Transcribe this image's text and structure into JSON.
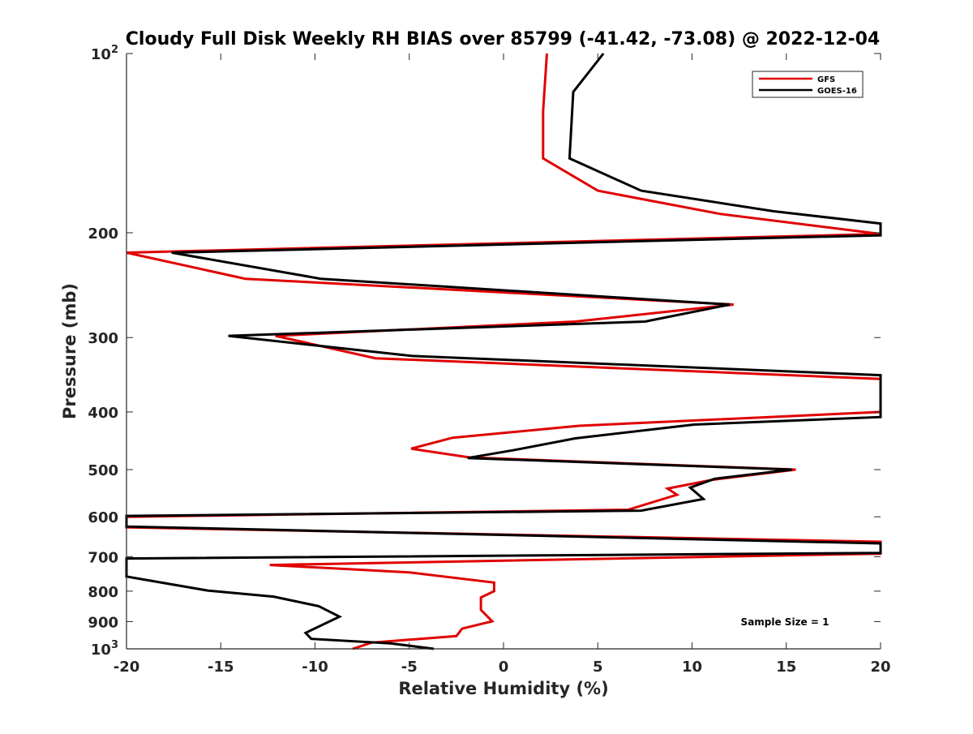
{
  "chart_data": {
    "type": "line",
    "title": "Cloudy Full Disk Weekly RH BIAS over 85799 (-41.42, -73.08) @ 2022-12-04",
    "xlabel": "Relative Humidity (%)",
    "ylabel": "Pressure (mb)",
    "xlim": [
      -20,
      20
    ],
    "ylim": [
      100,
      1000
    ],
    "y_scale": "log",
    "y_reversed": true,
    "grid": false,
    "legend_position": "top-right",
    "x_ticks": [
      "-20",
      "-15",
      "-10",
      "-5",
      "0",
      "5",
      "10",
      "15",
      "20"
    ],
    "y_ticks": [
      {
        "value": 100,
        "base": "10",
        "exp": "2"
      },
      {
        "value": 200,
        "label": "200"
      },
      {
        "value": 300,
        "label": "300"
      },
      {
        "value": 400,
        "label": "400"
      },
      {
        "value": 500,
        "label": "500"
      },
      {
        "value": 600,
        "label": "600"
      },
      {
        "value": 700,
        "label": "700"
      },
      {
        "value": 800,
        "label": "800"
      },
      {
        "value": 900,
        "label": "900"
      },
      {
        "value": 1000,
        "base": "10",
        "exp": "3"
      }
    ],
    "annotation": "Sample Size = 1",
    "series": [
      {
        "name": "GFS",
        "color": "#e00000",
        "points": [
          [
            2.3,
            100
          ],
          [
            2.1,
            125
          ],
          [
            2.1,
            150
          ],
          [
            5.0,
            170
          ],
          [
            11.5,
            186
          ],
          [
            20.0,
            201
          ],
          [
            -20.0,
            216
          ],
          [
            -13.7,
            239
          ],
          [
            12.2,
            264
          ],
          [
            3.8,
            282
          ],
          [
            -12.1,
            298
          ],
          [
            -6.8,
            325
          ],
          [
            20.0,
            352
          ],
          [
            20.0,
            400
          ],
          [
            4.0,
            422
          ],
          [
            -2.7,
            442
          ],
          [
            -4.9,
            461
          ],
          [
            -1.8,
            477
          ],
          [
            15.5,
            500
          ],
          [
            11.1,
            520
          ],
          [
            8.7,
            538
          ],
          [
            9.2,
            551
          ],
          [
            6.6,
            584
          ],
          [
            -20.0,
            600
          ],
          [
            -20.0,
            625
          ],
          [
            20.0,
            661
          ],
          [
            20.0,
            692
          ],
          [
            -12.4,
            723
          ],
          [
            -5.0,
            744
          ],
          [
            -0.5,
            774
          ],
          [
            -0.5,
            800
          ],
          [
            -1.2,
            820
          ],
          [
            -1.2,
            860
          ],
          [
            -0.6,
            899
          ],
          [
            -2.2,
            925
          ],
          [
            -2.5,
            952
          ],
          [
            -7.0,
            976
          ],
          [
            -8.0,
            1000
          ]
        ]
      },
      {
        "name": "GOES-16",
        "color": "#000000",
        "points": [
          [
            5.3,
            100
          ],
          [
            3.7,
            116
          ],
          [
            3.5,
            150
          ],
          [
            7.3,
            170
          ],
          [
            14.3,
            184
          ],
          [
            20.0,
            193
          ],
          [
            20.0,
            202
          ],
          [
            -17.6,
            216
          ],
          [
            -9.7,
            239
          ],
          [
            12.0,
            264
          ],
          [
            7.5,
            282
          ],
          [
            -14.6,
            298
          ],
          [
            -4.9,
            322
          ],
          [
            20.0,
            347
          ],
          [
            20.0,
            408
          ],
          [
            10.1,
            420
          ],
          [
            3.8,
            443
          ],
          [
            0.5,
            464
          ],
          [
            -1.9,
            478
          ],
          [
            15.3,
            500
          ],
          [
            11.2,
            518
          ],
          [
            9.9,
            536
          ],
          [
            10.6,
            560
          ],
          [
            7.3,
            586
          ],
          [
            -20.0,
            598
          ],
          [
            -20.0,
            623
          ],
          [
            20.0,
            665
          ],
          [
            20.0,
            690
          ],
          [
            -20.0,
            705
          ],
          [
            -20.0,
            756
          ],
          [
            -15.7,
            798
          ],
          [
            -12.2,
            817
          ],
          [
            -9.8,
            848
          ],
          [
            -8.7,
            883
          ],
          [
            -9.6,
            911
          ],
          [
            -10.5,
            940
          ],
          [
            -10.2,
            962
          ],
          [
            -6.0,
            979
          ],
          [
            -3.7,
            1000
          ]
        ]
      }
    ]
  }
}
